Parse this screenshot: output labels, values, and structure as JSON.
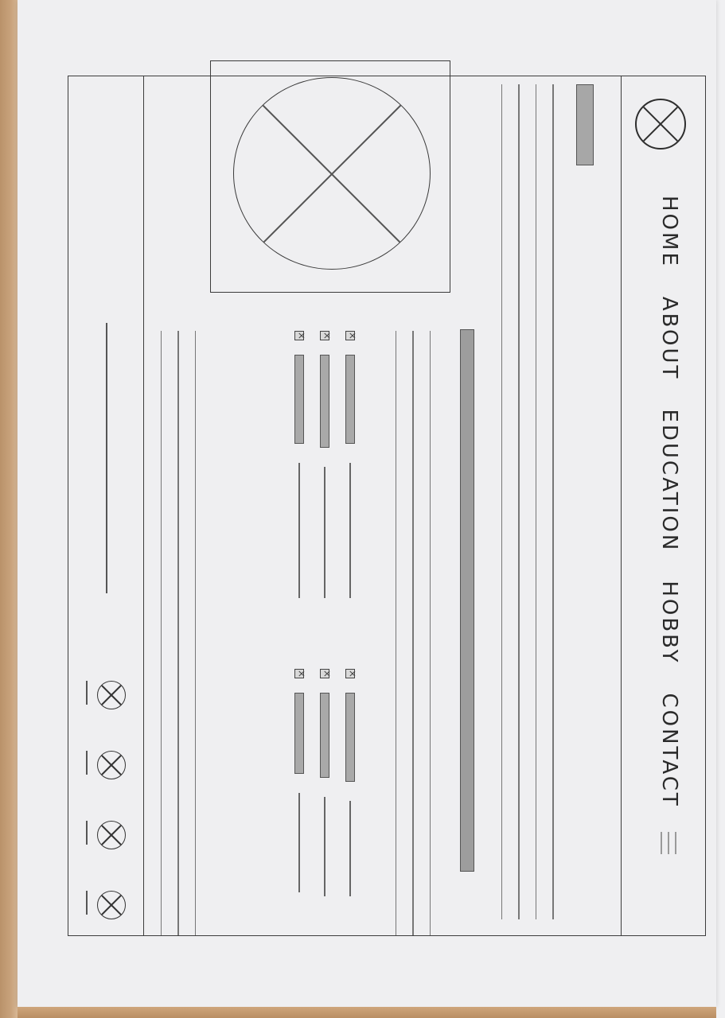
{
  "nav": {
    "items": [
      "HOME",
      "ABOUT",
      "EDUCATION",
      "HOBBY",
      "CONTACT"
    ]
  },
  "icons": {
    "logo": "placeholder-circle-x-icon",
    "hero_image": "image-placeholder-icon",
    "menu": "hamburger-icon",
    "social": [
      "social-icon-1",
      "social-icon-2",
      "social-icon-3",
      "social-icon-4"
    ]
  },
  "colors": {
    "paper": "#efeff1",
    "pencil": "#3c3c3c",
    "shade": "#a7a7a7"
  }
}
